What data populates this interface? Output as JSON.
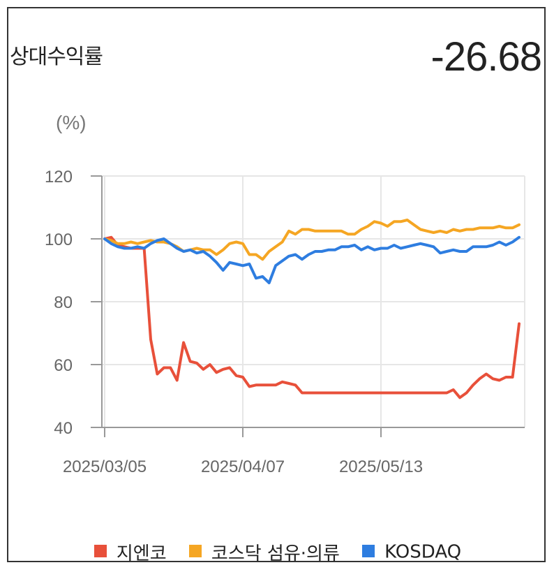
{
  "header": {
    "title": "상대수익률",
    "value": "-26.68"
  },
  "chart_data": {
    "type": "line",
    "unit_label": "(%)",
    "ylim": [
      40,
      120
    ],
    "y_ticks": [
      "120",
      "100",
      "80",
      "60",
      "40"
    ],
    "x_tick_labels": [
      "2025/03/05",
      "2025/04/07",
      "2025/05/13"
    ],
    "x_tick_index": [
      0,
      21,
      42
    ],
    "grid": true,
    "legend_position": "bottom",
    "series": [
      {
        "name": "지엔코",
        "color": "#e8503a",
        "values": [
          100,
          100.5,
          98,
          97.5,
          97,
          97,
          97,
          68,
          57,
          59,
          59,
          55,
          67,
          61,
          60.5,
          58.5,
          60,
          57.5,
          58.5,
          59,
          56.5,
          56,
          53,
          53.5,
          53.5,
          53.5,
          53.5,
          54.5,
          54,
          53.5,
          51,
          51,
          51,
          51,
          51,
          51,
          51,
          51,
          51,
          51,
          51,
          51,
          51,
          51,
          51,
          51,
          51,
          51,
          51,
          51,
          51,
          51,
          51,
          52,
          49.5,
          51,
          53.5,
          55.5,
          57,
          55.5,
          55,
          56,
          56,
          73
        ]
      },
      {
        "name": "코스닥 섬유·의류",
        "color": "#f5a623",
        "values": [
          100,
          99.5,
          98.5,
          98.5,
          99,
          98.5,
          99,
          99.5,
          99,
          99,
          98.5,
          97.5,
          96,
          96.5,
          97,
          96.5,
          96.5,
          95,
          96.5,
          98.5,
          99,
          98.5,
          95,
          95,
          93.5,
          96,
          97.5,
          99,
          102.5,
          101.5,
          103,
          103,
          102.5,
          102.5,
          102.5,
          102.5,
          102.5,
          101.5,
          101.5,
          103,
          104,
          105.5,
          105,
          104,
          105.5,
          105.5,
          106,
          104.5,
          103,
          102.5,
          102,
          102.5,
          102,
          103,
          102.5,
          103,
          103,
          103.5,
          103.5,
          103.5,
          104,
          103.5,
          103.5,
          104.5
        ]
      },
      {
        "name": "KOSDAQ",
        "color": "#2e7de0",
        "values": [
          100,
          98.5,
          97.5,
          97,
          97,
          97.5,
          97,
          98.5,
          99.5,
          100,
          98.5,
          97,
          96,
          96.5,
          95.5,
          96,
          94.5,
          92.5,
          90,
          92.5,
          92,
          91.5,
          92,
          87.5,
          88,
          86,
          91.5,
          93,
          94.5,
          95,
          93.5,
          95,
          96,
          96,
          96.5,
          96.5,
          97.5,
          97.5,
          98,
          96.5,
          97.5,
          96.5,
          97,
          97,
          98,
          97,
          97.5,
          98,
          98.5,
          98,
          97.5,
          95.5,
          96,
          96.5,
          96,
          96,
          97.5,
          97.5,
          97.5,
          98,
          99,
          98,
          99,
          100.5
        ]
      }
    ]
  }
}
